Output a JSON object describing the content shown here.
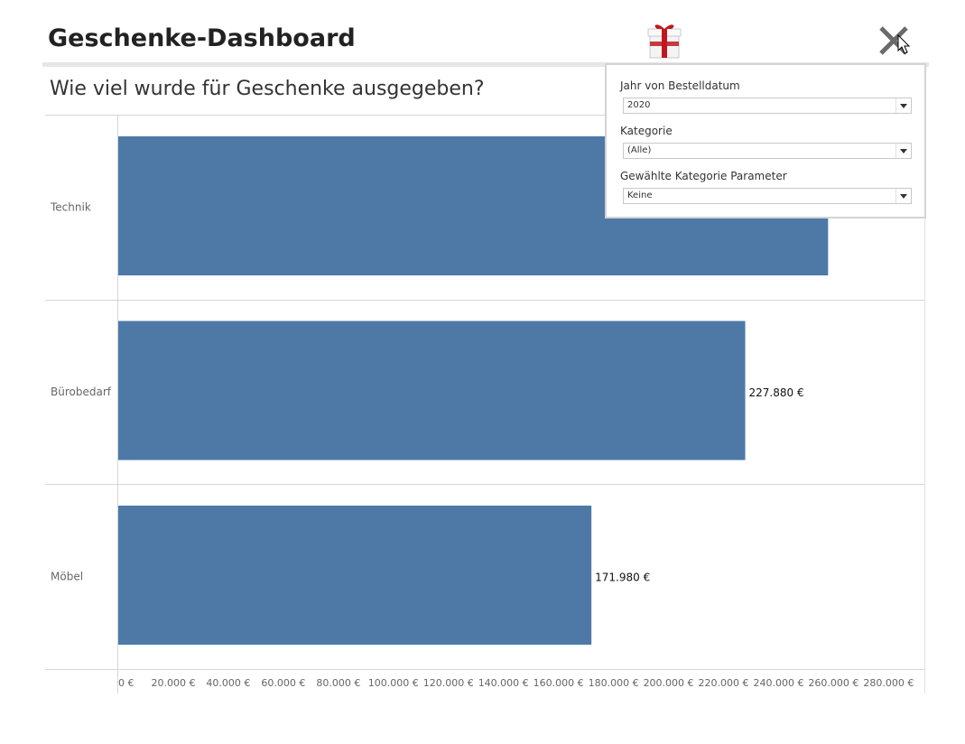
{
  "header": {
    "title": "Geschenke-Dashboard",
    "subtitle": "Wie viel wurde für Geschenke ausgegeben?"
  },
  "icons": {
    "gift": "gift-icon",
    "close": "close-icon",
    "cursor": "cursor-icon"
  },
  "filters": {
    "year": {
      "label": "Jahr von Bestelldatum",
      "value": "2020"
    },
    "category": {
      "label": "Kategorie",
      "value": "(Alle)"
    },
    "parameter": {
      "label": "Gewählte Kategorie Parameter",
      "value": "Keine"
    }
  },
  "colors": {
    "bar": "#4e79a7",
    "gift_red": "#c0171f",
    "close": "#6b6b6b"
  },
  "chart_data": {
    "type": "bar",
    "orientation": "horizontal",
    "categories": [
      "Technik",
      "Bürobedarf",
      "Möbel"
    ],
    "values": [
      258000,
      227880,
      171980
    ],
    "data_labels": [
      "",
      "227.880 €",
      "171.980 €"
    ],
    "x_ticks": [
      0,
      20000,
      40000,
      60000,
      80000,
      100000,
      120000,
      140000,
      160000,
      180000,
      200000,
      220000,
      240000,
      260000,
      280000
    ],
    "x_tick_labels": [
      "0 €",
      "20.000 €",
      "40.000 €",
      "60.000 €",
      "80.000 €",
      "100.000 €",
      "120.000 €",
      "140.000 €",
      "160.000 €",
      "180.000 €",
      "200.000 €",
      "220.000 €",
      "240.000 €",
      "260.000 €",
      "280.000 €"
    ],
    "xlim": [
      0,
      293000
    ],
    "title": "",
    "xlabel": "",
    "ylabel": ""
  }
}
